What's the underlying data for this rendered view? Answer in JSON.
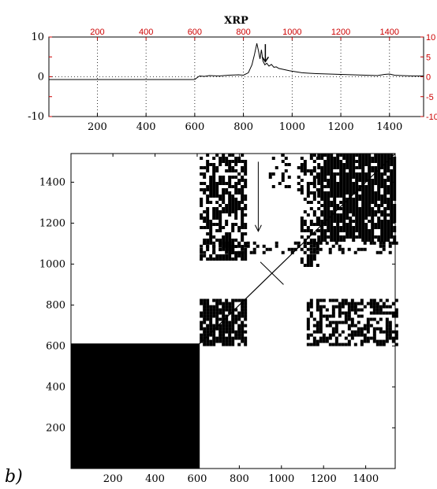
{
  "panel_label": "b)",
  "chart_data": [
    {
      "type": "line",
      "title": "XRP",
      "xlim": [
        1,
        1540
      ],
      "ylim": [
        -10,
        10
      ],
      "right_ylim": [
        -10,
        10
      ],
      "x_ticks": [
        200,
        400,
        600,
        800,
        1000,
        1200,
        1400
      ],
      "x_ticks_top": [
        200,
        400,
        600,
        800,
        1000,
        1200,
        1400
      ],
      "y_ticks": [
        -10,
        0,
        10
      ],
      "y_ticks_right": [
        -10,
        -5,
        0,
        5,
        10
      ],
      "grid": true,
      "axis_color": "#000000",
      "secondary_axis_color": "#cc0000",
      "series": [
        {
          "x": [
            1,
            100,
            200,
            300,
            400,
            500,
            600,
            610,
            620,
            640,
            660,
            700,
            740,
            780,
            800,
            820,
            835,
            845,
            855,
            862,
            868,
            874,
            880,
            888,
            896,
            905,
            915,
            925,
            935,
            945,
            960,
            975,
            990,
            1010,
            1040,
            1070,
            1100,
            1150,
            1200,
            1250,
            1300,
            1350,
            1380,
            1400,
            1420,
            1450,
            1500,
            1540
          ],
          "y": [
            -0.7,
            -0.7,
            -0.7,
            -0.7,
            -0.7,
            -0.7,
            -0.7,
            -0.2,
            0.2,
            0.1,
            0.3,
            0.2,
            0.4,
            0.5,
            0.4,
            1.0,
            3.0,
            5.5,
            8.4,
            6.5,
            4.5,
            6.8,
            4.0,
            3.0,
            3.4,
            2.7,
            3.1,
            2.4,
            2.5,
            2.1,
            1.9,
            1.7,
            1.5,
            1.3,
            1.0,
            0.9,
            0.8,
            0.7,
            0.6,
            0.5,
            0.4,
            0.3,
            0.6,
            0.7,
            0.4,
            0.3,
            0.2,
            0.2
          ]
        }
      ],
      "annotations": [
        {
          "type": "arrow",
          "x": 890,
          "y_from": 8.2,
          "y_to": 3.8
        }
      ]
    },
    {
      "type": "heatmap",
      "subtype": "recurrence_plot",
      "xlim": [
        1,
        1540
      ],
      "ylim": [
        1,
        1540
      ],
      "x_ticks": [
        200,
        400,
        600,
        800,
        1000,
        1200,
        1400
      ],
      "y_ticks": [
        200,
        400,
        600,
        800,
        1000,
        1200,
        1400
      ],
      "fill_color": "#000000",
      "blocks": [
        {
          "x": [
            1,
            612
          ],
          "y": [
            1,
            612
          ],
          "density": 1.0
        },
        {
          "x": [
            612,
            835
          ],
          "y": [
            612,
            830
          ],
          "density": 0.8
        },
        {
          "x": [
            612,
            835
          ],
          "y": [
            1030,
            1540
          ],
          "density": 0.6
        },
        {
          "x": [
            1120,
            1540
          ],
          "y": [
            612,
            830
          ],
          "density": 0.55
        },
        {
          "x": [
            1170,
            1540
          ],
          "y": [
            1120,
            1540
          ],
          "density": 0.85
        },
        {
          "x": [
            1090,
            1170
          ],
          "y": [
            1000,
            1540
          ],
          "density": 0.4
        },
        {
          "x": [
            940,
            1090
          ],
          "y": [
            1360,
            1540
          ],
          "density": 0.2
        },
        {
          "x": [
            835,
            1540
          ],
          "y": [
            1060,
            1110
          ],
          "density": 0.35
        },
        {
          "x": [
            612,
            835
          ],
          "y": [
            1060,
            1110
          ],
          "density": 0.55
        }
      ],
      "diagonal": true,
      "annotations": [
        {
          "type": "arrow",
          "x": 890,
          "y_from": 1500,
          "y_to": 1160
        }
      ]
    }
  ]
}
